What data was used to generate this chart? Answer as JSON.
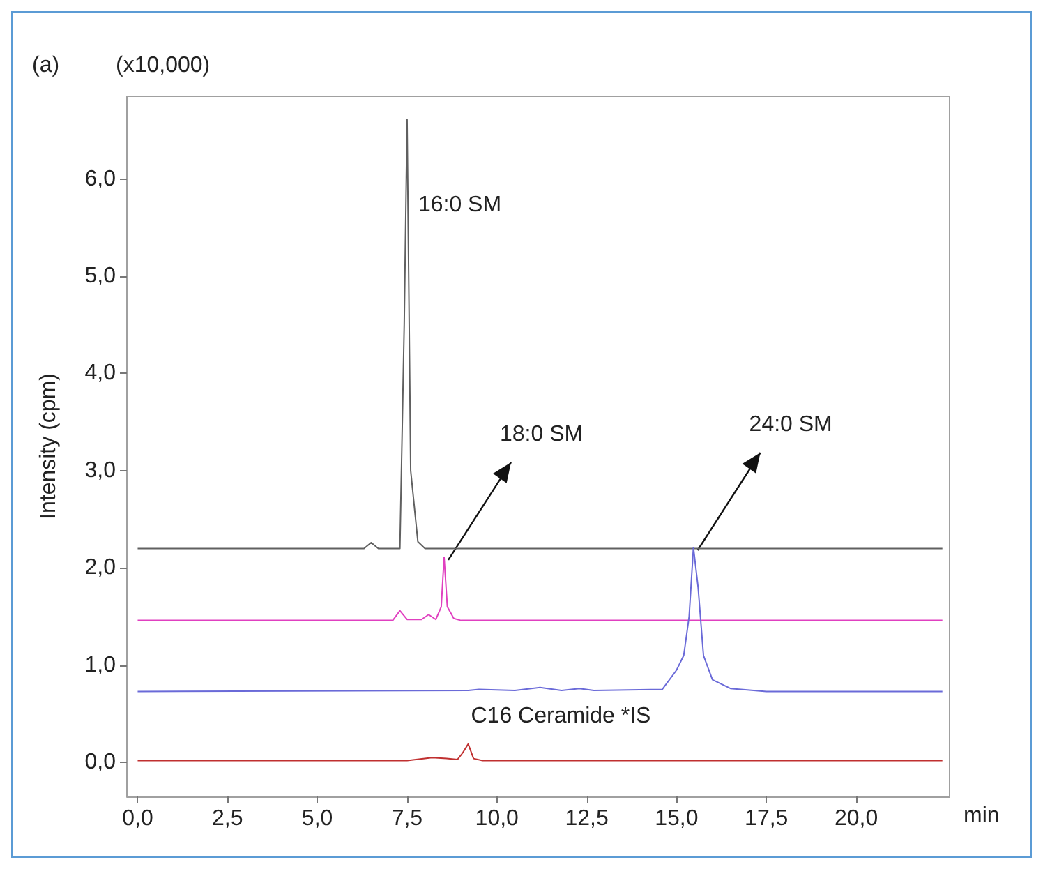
{
  "chart_data": {
    "type": "line",
    "ylabel": "Intensity (cpm)",
    "xlabel": "min",
    "annotations": [
      "(a)",
      "(x10,000)",
      "16:0 SM",
      {
        "text": "18:0 SM",
        "x": 8.53,
        "y": 2.11
      },
      {
        "text": "24:0 SM",
        "x": 15.47,
        "y": 2.21
      },
      "C16 Ceramide *IS"
    ],
    "xlim": [
      -0.3,
      22.6
    ],
    "ylim": [
      -0.35,
      6.85
    ],
    "xticks": [
      {
        "value": 0,
        "label": "0,0"
      },
      {
        "value": 2.5,
        "label": "2,5"
      },
      {
        "value": 5,
        "label": "5,0"
      },
      {
        "value": 7.5,
        "label": "7,5"
      },
      {
        "value": 10,
        "label": "10,0"
      },
      {
        "value": 12.5,
        "label": "12,5"
      },
      {
        "value": 15,
        "label": "15,0"
      },
      {
        "value": 17.5,
        "label": "17,5"
      },
      {
        "value": 20,
        "label": "20,0"
      }
    ],
    "yticks": [
      {
        "value": 0,
        "label": "0,0"
      },
      {
        "value": 1,
        "label": "1,0"
      },
      {
        "value": 2,
        "label": "2,0"
      },
      {
        "value": 3,
        "label": "3,0"
      },
      {
        "value": 4,
        "label": "4,0"
      },
      {
        "value": 5,
        "label": "5,0"
      },
      {
        "value": 6,
        "label": "6,0"
      }
    ],
    "marker": "none",
    "line_style": "solid",
    "series": [
      {
        "color": "#606060",
        "x": [
          0,
          6.3,
          6.5,
          6.7,
          7.3,
          7.42,
          7.5,
          7.6,
          7.8,
          8.0,
          22.4
        ],
        "values": [
          2.2,
          2.2,
          2.26,
          2.2,
          2.2,
          4.5,
          6.61,
          3.0,
          2.27,
          2.2,
          2.2
        ]
      },
      {
        "color": "#e040c0",
        "x": [
          0,
          7.1,
          7.3,
          7.5,
          7.9,
          8.1,
          8.3,
          8.45,
          8.53,
          8.62,
          8.8,
          9.0,
          22.4
        ],
        "values": [
          1.46,
          1.46,
          1.56,
          1.47,
          1.47,
          1.52,
          1.47,
          1.6,
          2.11,
          1.6,
          1.48,
          1.46,
          1.46
        ]
      },
      {
        "color": "#6a6ad8",
        "x": [
          0,
          9.2,
          9.5,
          10.5,
          11.2,
          11.8,
          12.3,
          12.7,
          14.6,
          15.0,
          15.2,
          15.35,
          15.47,
          15.6,
          15.75,
          16.0,
          16.5,
          17.5,
          22.4
        ],
        "values": [
          0.73,
          0.74,
          0.75,
          0.74,
          0.77,
          0.74,
          0.76,
          0.74,
          0.75,
          0.95,
          1.1,
          1.5,
          2.21,
          1.8,
          1.1,
          0.85,
          0.76,
          0.73,
          0.73
        ]
      },
      {
        "color": "#c03030",
        "x": [
          0,
          7.5,
          8.2,
          8.6,
          8.9,
          9.05,
          9.2,
          9.35,
          9.6,
          22.4
        ],
        "values": [
          0.02,
          0.02,
          0.05,
          0.04,
          0.03,
          0.1,
          0.19,
          0.04,
          0.02,
          0.02
        ]
      }
    ]
  }
}
